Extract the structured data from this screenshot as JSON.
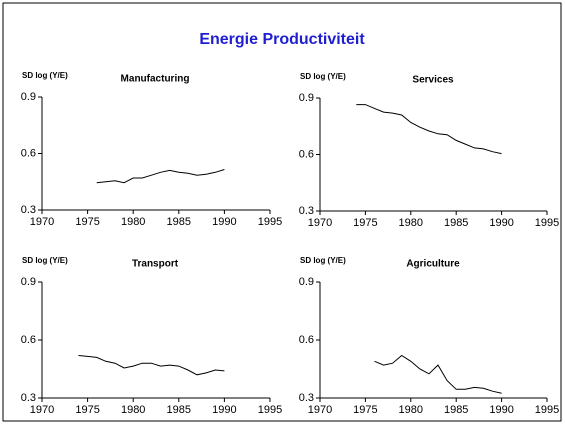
{
  "title": "Energie Productiviteit",
  "chart_data": [
    {
      "type": "line",
      "title": "Manufacturing",
      "y_label": "SD log (Y/E)",
      "color": "#000000",
      "x": [
        1976,
        1977,
        1978,
        1979,
        1980,
        1981,
        1982,
        1983,
        1984,
        1985,
        1986,
        1987,
        1988,
        1989,
        1990
      ],
      "values": [
        0.445,
        0.45,
        0.455,
        0.445,
        0.47,
        0.47,
        0.485,
        0.5,
        0.51,
        0.5,
        0.495,
        0.485,
        0.49,
        0.5,
        0.515
      ],
      "xlim": [
        1970,
        1995
      ],
      "xticks": [
        1970,
        1975,
        1980,
        1985,
        1990,
        1995
      ],
      "ylim": [
        0.3,
        0.9
      ],
      "yticks": [
        0.3,
        0.6,
        0.9
      ]
    },
    {
      "type": "line",
      "title": "Services",
      "y_label": "SD log (Y/E)",
      "color": "#000000",
      "x": [
        1974,
        1975,
        1976,
        1977,
        1978,
        1979,
        1980,
        1981,
        1982,
        1983,
        1984,
        1985,
        1986,
        1987,
        1988,
        1989,
        1990
      ],
      "values": [
        0.865,
        0.865,
        0.845,
        0.825,
        0.82,
        0.81,
        0.77,
        0.745,
        0.725,
        0.71,
        0.705,
        0.675,
        0.655,
        0.635,
        0.63,
        0.615,
        0.605
      ],
      "xlim": [
        1970,
        1995
      ],
      "xticks": [
        1970,
        1975,
        1980,
        1985,
        1990,
        1995
      ],
      "ylim": [
        0.3,
        0.9
      ],
      "yticks": [
        0.3,
        0.6,
        0.9
      ]
    },
    {
      "type": "line",
      "title": "Transport",
      "y_label": "SD log (Y/E)",
      "color": "#000000",
      "x": [
        1974,
        1975,
        1976,
        1977,
        1978,
        1979,
        1980,
        1981,
        1982,
        1983,
        1984,
        1985,
        1986,
        1987,
        1988,
        1989,
        1990
      ],
      "values": [
        0.52,
        0.515,
        0.51,
        0.49,
        0.48,
        0.455,
        0.465,
        0.48,
        0.48,
        0.465,
        0.47,
        0.465,
        0.445,
        0.42,
        0.43,
        0.445,
        0.44
      ],
      "xlim": [
        1970,
        1995
      ],
      "xticks": [
        1970,
        1975,
        1980,
        1985,
        1990,
        1995
      ],
      "ylim": [
        0.3,
        0.9
      ],
      "yticks": [
        0.3,
        0.6,
        0.9
      ]
    },
    {
      "type": "line",
      "title": "Agriculture",
      "y_label": "SD log (Y/E)",
      "color": "#000000",
      "x": [
        1976,
        1977,
        1978,
        1979,
        1980,
        1981,
        1982,
        1983,
        1984,
        1985,
        1986,
        1987,
        1988,
        1989,
        1990
      ],
      "values": [
        0.49,
        0.47,
        0.48,
        0.52,
        0.49,
        0.45,
        0.425,
        0.47,
        0.39,
        0.345,
        0.345,
        0.355,
        0.35,
        0.335,
        0.325
      ],
      "xlim": [
        1970,
        1995
      ],
      "xticks": [
        1970,
        1975,
        1980,
        1985,
        1990,
        1995
      ],
      "ylim": [
        0.3,
        0.9
      ],
      "yticks": [
        0.3,
        0.6,
        0.9
      ]
    }
  ]
}
